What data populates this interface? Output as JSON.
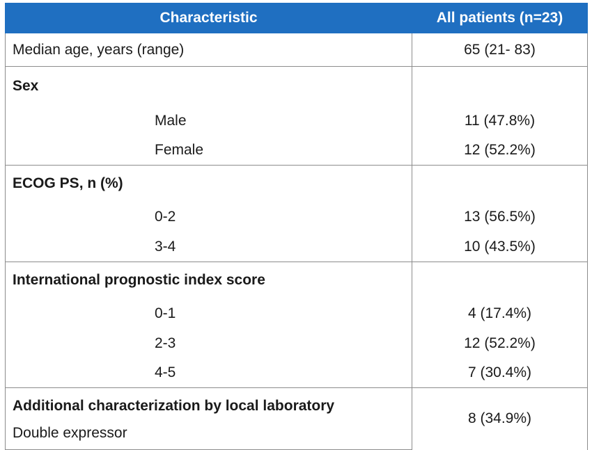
{
  "header": {
    "col1": "Characteristic",
    "col2": "All patients (n=23)"
  },
  "median_age": {
    "label": "Median age, years (range)",
    "value": "65 (21- 83)"
  },
  "sex": {
    "heading": "Sex",
    "rows": [
      {
        "label": "Male",
        "value": "11 (47.8%)"
      },
      {
        "label": "Female",
        "value": "12 (52.2%)"
      }
    ]
  },
  "ecog": {
    "heading": "ECOG PS, n (%)",
    "rows": [
      {
        "label": "0-2",
        "value": "13 (56.5%)"
      },
      {
        "label": "3-4",
        "value": "10 (43.5%)"
      }
    ]
  },
  "ipi": {
    "heading": "International prognostic index score",
    "rows": [
      {
        "label": "0-1",
        "value": "4 (17.4%)"
      },
      {
        "label": "2-3",
        "value": "12 (52.2%)"
      },
      {
        "label": "4-5",
        "value": "7 (30.4%)"
      }
    ]
  },
  "additional": {
    "heading": "Additional characterization by local laboratory",
    "label": "Double expressor",
    "value": "8 (34.9%)"
  }
}
